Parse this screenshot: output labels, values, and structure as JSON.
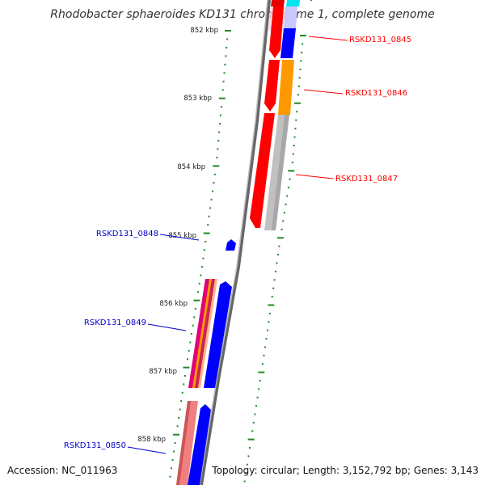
{
  "title": "Rhodobacter sphaeroides KD131 chromosome 1, complete genome",
  "footer": {
    "accession": "Accession: NC_011963",
    "topology": "Topology: circular; Length: 3,152,792 bp; Genes: 3,143"
  },
  "kbp_labels": [
    "852 kbp",
    "853 kbp",
    "854 kbp",
    "855 kbp",
    "856 kbp",
    "857 kbp",
    "858 kbp"
  ],
  "gene_labels": [
    {
      "name": "RSKD131_0845",
      "strand": "forward",
      "color": "#ff0000"
    },
    {
      "name": "RSKD131_0846",
      "strand": "forward",
      "color": "#ff0000"
    },
    {
      "name": "RSKD131_0847",
      "strand": "forward",
      "color": "#ff0000"
    },
    {
      "name": "RSKD131_0848",
      "strand": "reverse",
      "color": "#0000cc"
    },
    {
      "name": "RSKD131_0849",
      "strand": "reverse",
      "color": "#0000cc"
    },
    {
      "name": "RSKD131_0850",
      "strand": "reverse",
      "color": "#0000cc"
    }
  ],
  "colors": {
    "forward_label": "#ff0000",
    "reverse_label": "#0000cc",
    "tick": "#1f8a1f",
    "backbone": "#808080",
    "cds_forward": "#ff0000",
    "cds_reverse": "#0000ff",
    "orange": "#ff9900",
    "gray_feature": "#bbbbbb",
    "magenta": "#e0007a",
    "salmon": "#f08080",
    "cyan": "#00e5ee"
  }
}
